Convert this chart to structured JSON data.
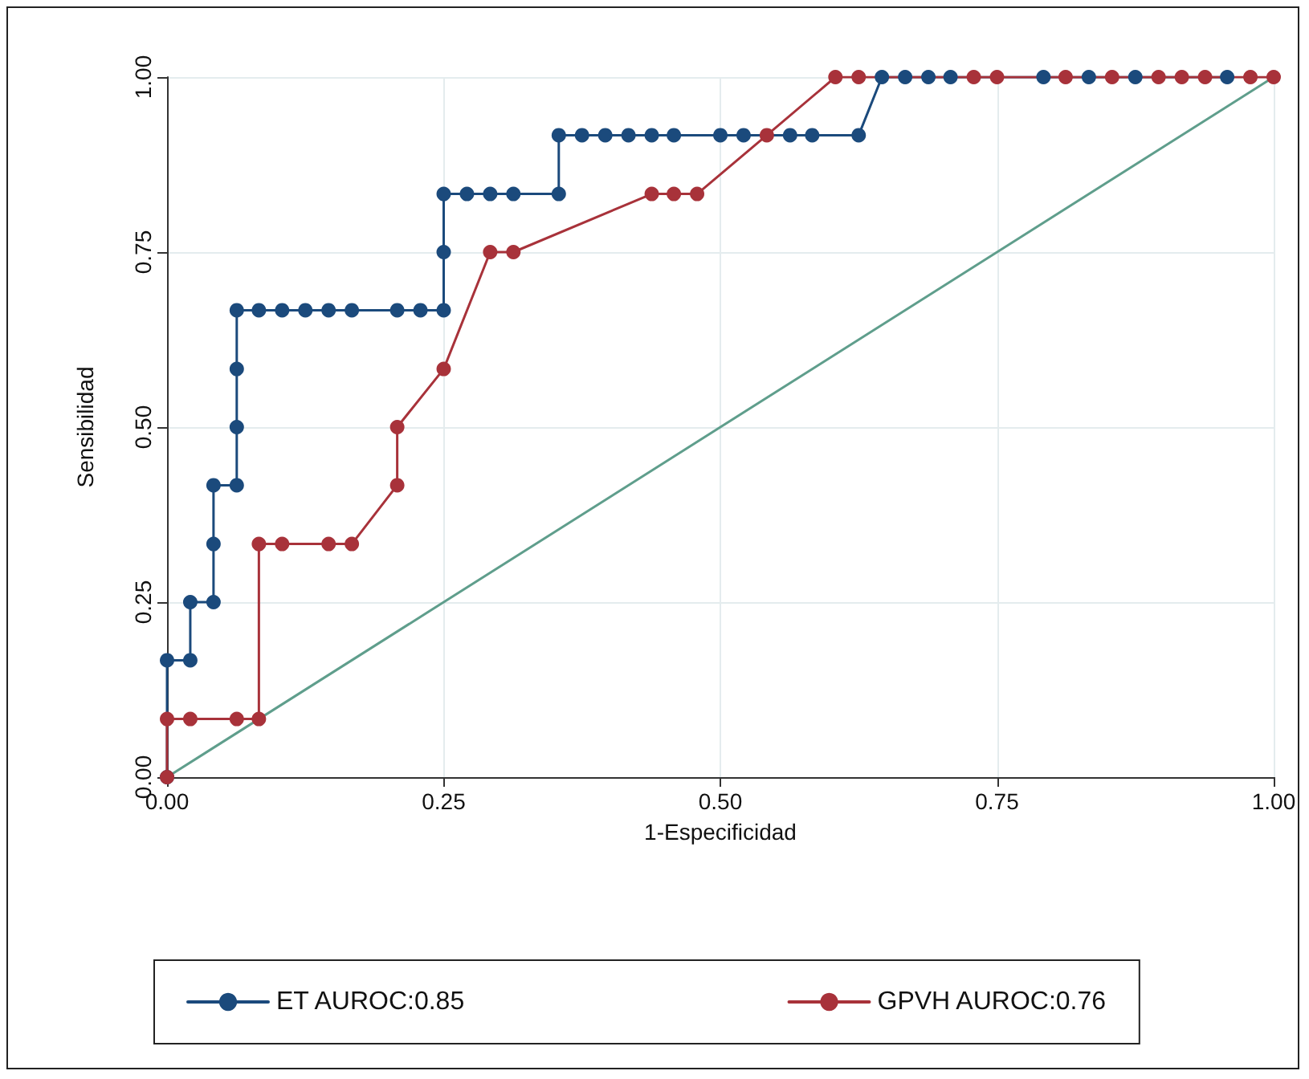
{
  "chart_data": {
    "type": "line",
    "xlabel": "1-Especificidad",
    "ylabel": "Sensibilidad",
    "xlim": [
      0,
      1
    ],
    "ylim": [
      0,
      1
    ],
    "xticks": [
      {
        "value": 0,
        "label": "0.00"
      },
      {
        "value": 0.25,
        "label": "0.25"
      },
      {
        "value": 0.5,
        "label": "0.50"
      },
      {
        "value": 0.75,
        "label": "0.75"
      },
      {
        "value": 1,
        "label": "1.00"
      }
    ],
    "yticks": [
      {
        "value": 0,
        "label": "0.00"
      },
      {
        "value": 0.25,
        "label": "0.25"
      },
      {
        "value": 0.5,
        "label": "0.50"
      },
      {
        "value": 0.75,
        "label": "0.75"
      },
      {
        "value": 1,
        "label": "1.00"
      }
    ],
    "grid": true,
    "legend": "bottom",
    "marker": "circle",
    "line_style": "solid",
    "series": [
      {
        "name": "ET AUROC:0.85",
        "color": "#1b4a7c",
        "x": [
          0,
          0,
          0.021,
          0.021,
          0.042,
          0.042,
          0.042,
          0.063,
          0.063,
          0.063,
          0.063,
          0.083,
          0.104,
          0.125,
          0.146,
          0.167,
          0.208,
          0.229,
          0.25,
          0.25,
          0.25,
          0.271,
          0.292,
          0.313,
          0.354,
          0.354,
          0.375,
          0.396,
          0.417,
          0.438,
          0.458,
          0.5,
          0.521,
          0.563,
          0.583,
          0.625,
          0.646,
          0.667,
          0.688,
          0.708,
          0.792,
          0.833,
          0.875,
          0.958
        ],
        "values": [
          0,
          0.167,
          0.167,
          0.25,
          0.25,
          0.333,
          0.417,
          0.417,
          0.5,
          0.583,
          0.667,
          0.667,
          0.667,
          0.667,
          0.667,
          0.667,
          0.667,
          0.667,
          0.667,
          0.75,
          0.833,
          0.833,
          0.833,
          0.833,
          0.833,
          0.917,
          0.917,
          0.917,
          0.917,
          0.917,
          0.917,
          0.917,
          0.917,
          0.917,
          0.917,
          0.917,
          1,
          1,
          1,
          1,
          1,
          1,
          1,
          1
        ]
      },
      {
        "name": "GPVH AUROC:0.76",
        "color": "#a8323a",
        "x": [
          0,
          0,
          0.021,
          0.063,
          0.083,
          0.083,
          0.104,
          0.146,
          0.167,
          0.208,
          0.208,
          0.25,
          0.292,
          0.313,
          0.438,
          0.458,
          0.479,
          0.542,
          0.604,
          0.625,
          0.729,
          0.75,
          0.812,
          0.854,
          0.896,
          0.917,
          0.938,
          0.979,
          1
        ],
        "values": [
          0,
          0.083,
          0.083,
          0.083,
          0.083,
          0.333,
          0.333,
          0.333,
          0.333,
          0.417,
          0.5,
          0.583,
          0.75,
          0.75,
          0.833,
          0.833,
          0.833,
          0.917,
          1,
          1,
          1,
          1,
          1,
          1,
          1,
          1,
          1,
          1,
          1
        ]
      },
      {
        "color": "#5f9e8c",
        "marker": "none",
        "x": [
          0,
          1
        ],
        "values": [
          0,
          1
        ]
      }
    ]
  }
}
